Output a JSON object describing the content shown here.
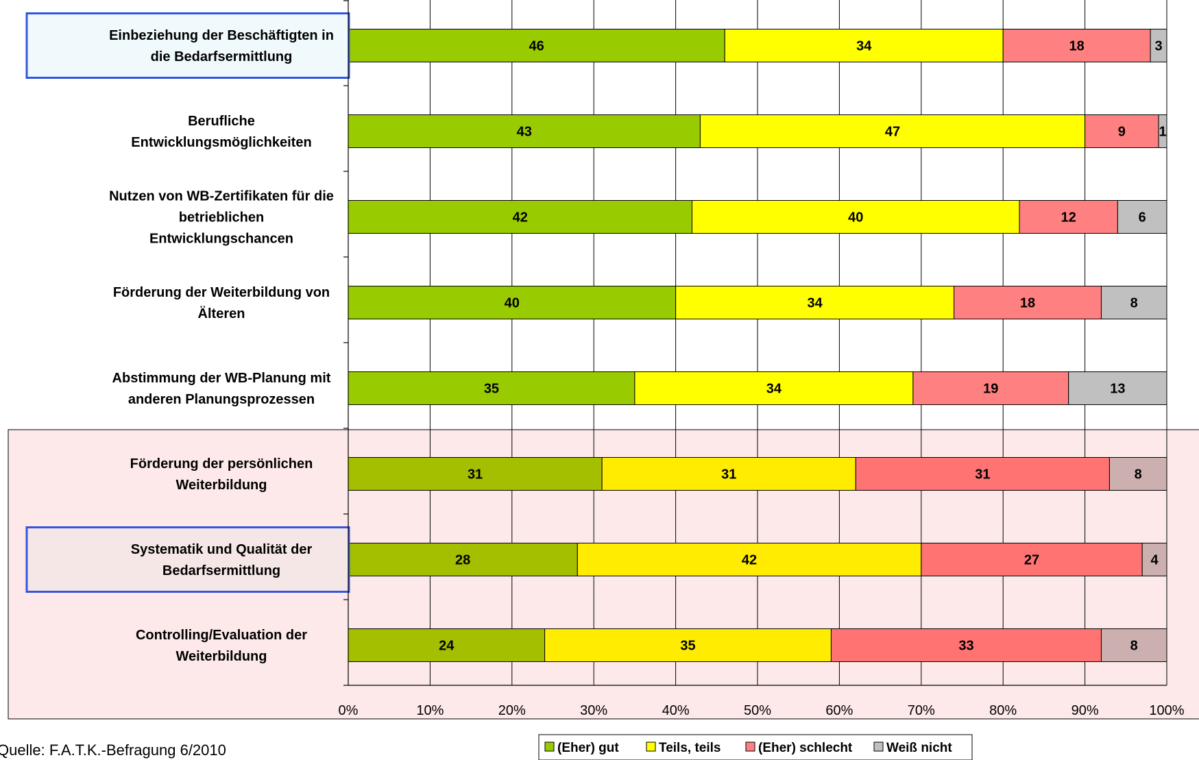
{
  "chart_data": {
    "type": "bar",
    "orientation": "horizontal",
    "stacked": true,
    "percent_stacked": true,
    "categories": [
      "Einbeziehung der Beschäftigten in die Bedarfsermittlung",
      "Berufliche Entwicklungsmöglichkeiten",
      "Nutzen von WB-Zertifikaten für die betrieblichen Entwicklungschancen",
      "Förderung der Weiterbildung von Älteren",
      "Abstimmung der WB-Planung mit anderen Planungsprozessen",
      "Förderung der persönlichen Weiterbildung",
      "Systematik und Qualität der Bedarfsermittlung",
      "Controlling/Evaluation der Weiterbildung"
    ],
    "category_lines": [
      [
        "Einbeziehung der Beschäftigten in",
        "die Bedarfsermittlung"
      ],
      [
        "Berufliche",
        "Entwicklungsmöglichkeiten"
      ],
      [
        "Nutzen von WB-Zertifikaten für die",
        "betrieblichen",
        "Entwicklungschancen"
      ],
      [
        "Förderung der Weiterbildung von",
        "Älteren"
      ],
      [
        "Abstimmung der WB-Planung mit",
        "anderen Planungsprozessen"
      ],
      [
        "Förderung der persönlichen",
        "Weiterbildung"
      ],
      [
        "Systematik und Qualität der",
        "Bedarfsermittlung"
      ],
      [
        "Controlling/Evaluation der",
        "Weiterbildung"
      ]
    ],
    "series": [
      {
        "name": "(Eher) gut",
        "values": [
          46,
          43,
          42,
          40,
          35,
          31,
          28,
          24
        ]
      },
      {
        "name": "Teils, teils",
        "values": [
          34,
          47,
          40,
          34,
          34,
          31,
          42,
          35
        ]
      },
      {
        "name": "(Eher) schlecht",
        "values": [
          18,
          9,
          12,
          18,
          19,
          31,
          27,
          33
        ]
      },
      {
        "name": "Weiß nicht",
        "values": [
          3,
          1,
          6,
          8,
          13,
          8,
          4,
          8
        ]
      }
    ],
    "xlim": [
      0,
      100
    ],
    "x_ticks": [
      "0%",
      "10%",
      "20%",
      "30%",
      "40%",
      "50%",
      "60%",
      "70%",
      "80%",
      "90%",
      "100%"
    ],
    "grid": true,
    "legend_position": "bottom",
    "highlighted_categories": [
      0,
      6
    ],
    "shaded_categories": [
      5,
      6,
      7
    ],
    "colors": {
      "normal": [
        "#99CC00",
        "#FFFF00",
        "#FF8080",
        "#C0C0C0"
      ],
      "shaded": [
        "#A4BE00",
        "#FFEC00",
        "#FF7373",
        "#CCB0B0"
      ],
      "highlight_border": "#3355DD",
      "shade_background": "#FDE9E9"
    }
  },
  "source_note": "Quelle: F.A.T.K.-Befragung 6/2010"
}
